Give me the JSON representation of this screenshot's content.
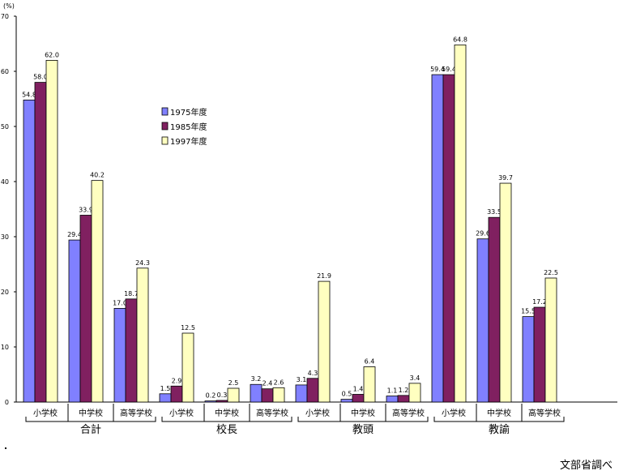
{
  "chart_data": {
    "type": "bar",
    "unit_label": "(%)",
    "ylim": [
      0,
      70
    ],
    "yticks": [
      0,
      10,
      20,
      30,
      40,
      50,
      60,
      70
    ],
    "grid": false,
    "legend_position": "upper-left-center",
    "groups": [
      {
        "label": "合計",
        "categories": [
          "小学校",
          "中学校",
          "高等学校"
        ]
      },
      {
        "label": "校長",
        "categories": [
          "小学校",
          "中学校",
          "高等学校"
        ]
      },
      {
        "label": "教頭",
        "categories": [
          "小学校",
          "中学校",
          "高等学校"
        ]
      },
      {
        "label": "教諭",
        "categories": [
          "小学校",
          "中学校",
          "高等学校"
        ]
      }
    ],
    "series": [
      {
        "name": "1975年度",
        "color": "#8080FF",
        "values": [
          54.8,
          29.4,
          17.0,
          1.5,
          0.2,
          3.2,
          3.1,
          0.5,
          1.1,
          59.4,
          29.6,
          15.5
        ],
        "labels": [
          "54.8",
          "29.4",
          "17.0",
          "1.5",
          "0.2",
          "3.2",
          "3.1",
          "0.5",
          "1.1",
          "59.4",
          "29.6",
          "15.5"
        ]
      },
      {
        "name": "1985年度",
        "color": "#802060",
        "values": [
          58.0,
          33.9,
          18.7,
          2.9,
          0.3,
          2.4,
          4.3,
          1.4,
          1.2,
          59.4,
          33.5,
          17.2
        ],
        "labels": [
          "58.0",
          "33.9",
          "18.7",
          "2.9",
          "0.3",
          "2.4",
          "4.3",
          "1.4",
          "1.2",
          "59.4",
          "33.5",
          "17.2"
        ]
      },
      {
        "name": "1997年度",
        "color": "#FFFFC0",
        "values": [
          62.0,
          40.2,
          24.3,
          12.5,
          2.5,
          2.6,
          21.9,
          6.4,
          3.4,
          64.8,
          39.7,
          22.5
        ],
        "labels": [
          "62.0",
          "40.2",
          "24.3",
          "12.5",
          "2.5",
          "2.6",
          "21.9",
          "6.4",
          "3.4",
          "64.8",
          "39.7",
          "22.5"
        ]
      }
    ]
  },
  "source_note": "文部省調べ"
}
